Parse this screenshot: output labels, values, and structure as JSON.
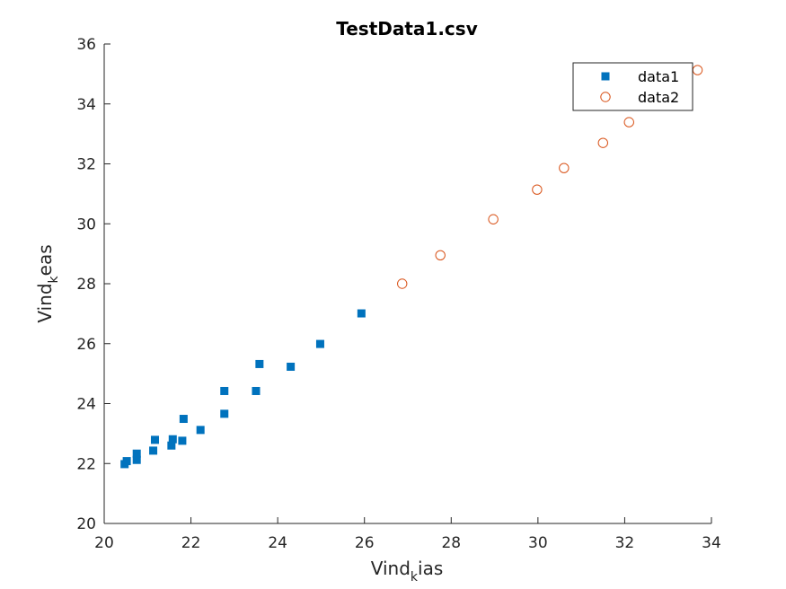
{
  "chart_data": {
    "type": "scatter",
    "title": "TestData1.csv",
    "xlabel": {
      "base": "Vind",
      "sub": "k",
      "rest": "ias"
    },
    "ylabel": {
      "base": "Vind",
      "sub": "k",
      "rest": "eas"
    },
    "xlim": [
      20,
      34
    ],
    "ylim": [
      20,
      36
    ],
    "xticks": [
      20,
      22,
      24,
      26,
      28,
      30,
      32,
      34
    ],
    "yticks": [
      20,
      22,
      24,
      26,
      28,
      30,
      32,
      34,
      36
    ],
    "legend_position": "top-right",
    "series": [
      {
        "name": "data1",
        "marker": "filled-square",
        "color": "#0072BD",
        "points": [
          [
            20.47,
            21.98
          ],
          [
            20.52,
            22.08
          ],
          [
            20.75,
            22.12
          ],
          [
            20.75,
            22.33
          ],
          [
            21.13,
            22.43
          ],
          [
            21.17,
            22.79
          ],
          [
            21.55,
            22.6
          ],
          [
            21.58,
            22.81
          ],
          [
            21.8,
            22.76
          ],
          [
            21.83,
            23.49
          ],
          [
            22.22,
            23.12
          ],
          [
            22.77,
            23.66
          ],
          [
            22.77,
            24.42
          ],
          [
            23.5,
            24.42
          ],
          [
            23.58,
            25.32
          ],
          [
            24.3,
            25.23
          ],
          [
            24.98,
            25.99
          ],
          [
            25.93,
            27.01
          ]
        ]
      },
      {
        "name": "data2",
        "marker": "open-circle",
        "color": "#D95319",
        "points": [
          [
            26.87,
            28.0
          ],
          [
            27.75,
            28.95
          ],
          [
            28.97,
            30.15
          ],
          [
            29.98,
            31.14
          ],
          [
            30.6,
            31.86
          ],
          [
            31.5,
            32.7
          ],
          [
            32.1,
            33.39
          ],
          [
            33.68,
            35.13
          ]
        ]
      }
    ]
  }
}
